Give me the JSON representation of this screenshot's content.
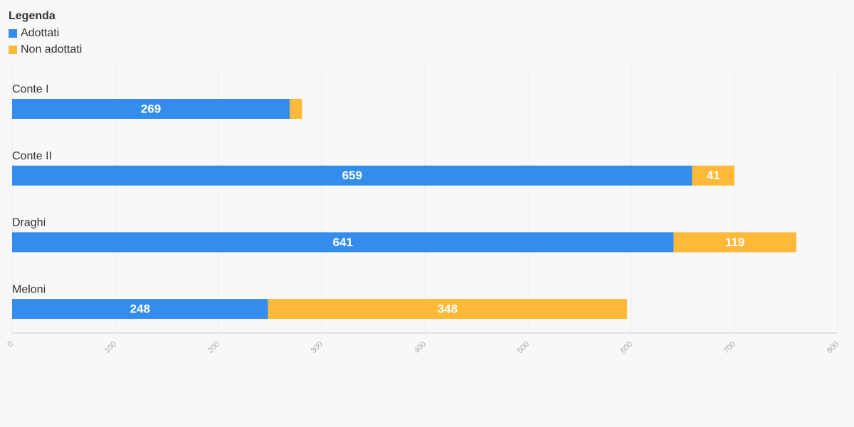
{
  "chart_data": {
    "type": "stacked-bar-horizontal",
    "legend_title": "Legenda",
    "legend_position": "top-left",
    "categories": [
      "Conte I",
      "Conte II",
      "Draghi",
      "Meloni"
    ],
    "series": [
      {
        "name": "Adottati",
        "color": "#348ded",
        "values": [
          269,
          659,
          641,
          248
        ]
      },
      {
        "name": "Non adottati",
        "color": "#ffb938",
        "values": [
          12,
          41,
          119,
          348
        ]
      }
    ],
    "xlim": [
      0,
      800
    ],
    "xticks": [
      0,
      100,
      200,
      300,
      400,
      500,
      600,
      700,
      800
    ],
    "grid": true
  }
}
